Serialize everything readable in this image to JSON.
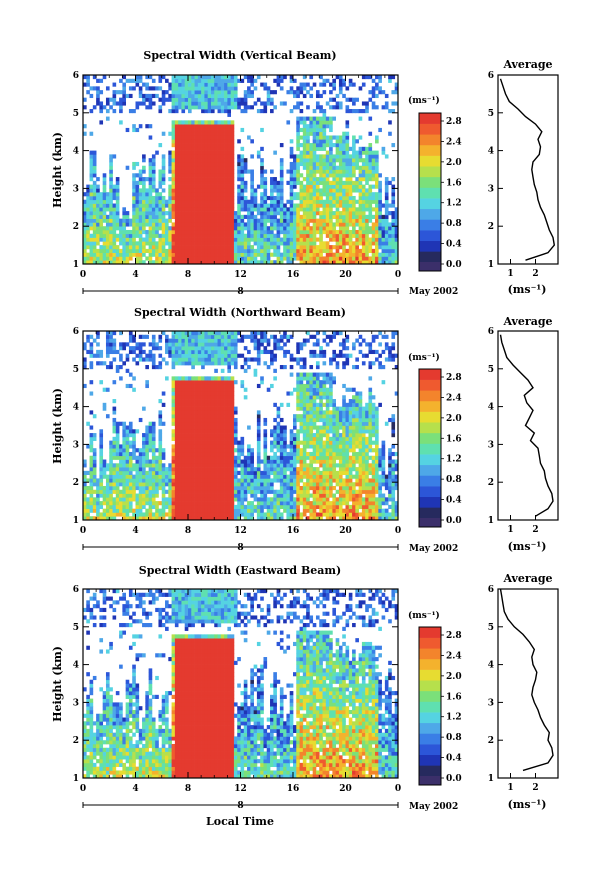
{
  "chart_data": {
    "type": "heatmap",
    "colors": {
      "scale": [
        "#262a5e",
        "#1f35b5",
        "#2c56d8",
        "#3a7ee6",
        "#4ea8e8",
        "#55d3e2",
        "#5fe0b0",
        "#7be07a",
        "#b6e04c",
        "#e7dc31",
        "#f4b22d",
        "#f3842c",
        "#ef5a2f",
        "#e43a2f"
      ],
      "outside": "#3b2f6a",
      "background": "#ffffff"
    },
    "colorbar": {
      "unit": "(ms⁻¹)",
      "ticks": [
        "2.8",
        "2.4",
        "2.0",
        "1.6",
        "1.2",
        "0.8",
        "0.4",
        "0.0"
      ],
      "ticks_eastward": [
        "2.8",
        "2.4",
        "2.0",
        "1.6",
        "1.2",
        "0.8",
        "0.4",
        "0.0"
      ]
    },
    "shared": {
      "x_ticks": [
        "0",
        "4",
        "8",
        "12",
        "16",
        "20",
        "0"
      ],
      "x_range": [
        0,
        24
      ],
      "date_label": "8",
      "month_label": "May 2002",
      "y_ticks": [
        "1",
        "2",
        "3",
        "4",
        "5",
        "6"
      ],
      "y_range": [
        1,
        6
      ],
      "ylabel": "Height (km)",
      "avg_title": "Average",
      "avg_xlabel": "(ms⁻¹)",
      "xlabel": "Local Time"
    },
    "panels": [
      {
        "title": "Spectral Width (Vertical Beam)",
        "avg_xticks": [
          "1",
          "2"
        ],
        "avg_xrange": [
          0.5,
          2.9
        ],
        "average_profile": [
          {
            "h": 1.1,
            "w": 1.6
          },
          {
            "h": 1.3,
            "w": 2.5
          },
          {
            "h": 1.5,
            "w": 2.75
          },
          {
            "h": 1.7,
            "w": 2.7
          },
          {
            "h": 1.9,
            "w": 2.55
          },
          {
            "h": 2.1,
            "w": 2.45
          },
          {
            "h": 2.3,
            "w": 2.35
          },
          {
            "h": 2.5,
            "w": 2.2
          },
          {
            "h": 2.7,
            "w": 2.1
          },
          {
            "h": 2.9,
            "w": 2.05
          },
          {
            "h": 3.1,
            "w": 1.95
          },
          {
            "h": 3.3,
            "w": 1.9
          },
          {
            "h": 3.5,
            "w": 1.85
          },
          {
            "h": 3.7,
            "w": 1.9
          },
          {
            "h": 3.9,
            "w": 2.15
          },
          {
            "h": 4.1,
            "w": 2.2
          },
          {
            "h": 4.3,
            "w": 2.1
          },
          {
            "h": 4.5,
            "w": 2.25
          },
          {
            "h": 4.7,
            "w": 2.0
          },
          {
            "h": 4.9,
            "w": 1.6
          },
          {
            "h": 5.1,
            "w": 1.3
          },
          {
            "h": 5.3,
            "w": 0.95
          },
          {
            "h": 5.5,
            "w": 0.8
          },
          {
            "h": 5.7,
            "w": 0.7
          },
          {
            "h": 5.9,
            "w": 0.6
          }
        ],
        "heatmap_seed": 11
      },
      {
        "title": "Spectral Width (Northward Beam)",
        "avg_xticks": [
          "1",
          "2"
        ],
        "avg_xrange": [
          0.5,
          2.9
        ],
        "average_profile": [
          {
            "h": 1.1,
            "w": 2.0
          },
          {
            "h": 1.3,
            "w": 2.5
          },
          {
            "h": 1.5,
            "w": 2.7
          },
          {
            "h": 1.7,
            "w": 2.65
          },
          {
            "h": 1.9,
            "w": 2.5
          },
          {
            "h": 2.1,
            "w": 2.4
          },
          {
            "h": 2.3,
            "w": 2.35
          },
          {
            "h": 2.5,
            "w": 2.2
          },
          {
            "h": 2.7,
            "w": 2.15
          },
          {
            "h": 2.9,
            "w": 2.1
          },
          {
            "h": 3.1,
            "w": 1.8
          },
          {
            "h": 3.3,
            "w": 1.95
          },
          {
            "h": 3.5,
            "w": 1.6
          },
          {
            "h": 3.7,
            "w": 1.75
          },
          {
            "h": 3.9,
            "w": 1.9
          },
          {
            "h": 4.1,
            "w": 1.65
          },
          {
            "h": 4.3,
            "w": 1.55
          },
          {
            "h": 4.5,
            "w": 1.9
          },
          {
            "h": 4.7,
            "w": 1.7
          },
          {
            "h": 4.9,
            "w": 1.4
          },
          {
            "h": 5.1,
            "w": 1.1
          },
          {
            "h": 5.3,
            "w": 0.85
          },
          {
            "h": 5.5,
            "w": 0.75
          },
          {
            "h": 5.7,
            "w": 0.65
          },
          {
            "h": 5.9,
            "w": 0.6
          }
        ],
        "heatmap_seed": 23
      },
      {
        "title": "Spectral Width (Eastward Beam)",
        "avg_xticks": [
          "1",
          "2"
        ],
        "avg_xrange": [
          0.5,
          2.9
        ],
        "average_profile": [
          {
            "h": 1.2,
            "w": 1.5
          },
          {
            "h": 1.4,
            "w": 2.5
          },
          {
            "h": 1.6,
            "w": 2.7
          },
          {
            "h": 1.8,
            "w": 2.65
          },
          {
            "h": 2.0,
            "w": 2.5
          },
          {
            "h": 2.2,
            "w": 2.55
          },
          {
            "h": 2.4,
            "w": 2.35
          },
          {
            "h": 2.6,
            "w": 2.2
          },
          {
            "h": 2.8,
            "w": 2.1
          },
          {
            "h": 3.0,
            "w": 1.95
          },
          {
            "h": 3.2,
            "w": 1.85
          },
          {
            "h": 3.4,
            "w": 1.9
          },
          {
            "h": 3.6,
            "w": 2.0
          },
          {
            "h": 3.8,
            "w": 2.05
          },
          {
            "h": 4.0,
            "w": 1.9
          },
          {
            "h": 4.2,
            "w": 1.85
          },
          {
            "h": 4.4,
            "w": 1.95
          },
          {
            "h": 4.6,
            "w": 1.75
          },
          {
            "h": 4.8,
            "w": 1.5
          },
          {
            "h": 5.0,
            "w": 1.15
          },
          {
            "h": 5.2,
            "w": 0.9
          },
          {
            "h": 5.4,
            "w": 0.75
          },
          {
            "h": 5.6,
            "w": 0.7
          },
          {
            "h": 5.8,
            "w": 0.65
          },
          {
            "h": 6.0,
            "w": 0.6
          }
        ],
        "heatmap_seed": 37
      }
    ]
  }
}
